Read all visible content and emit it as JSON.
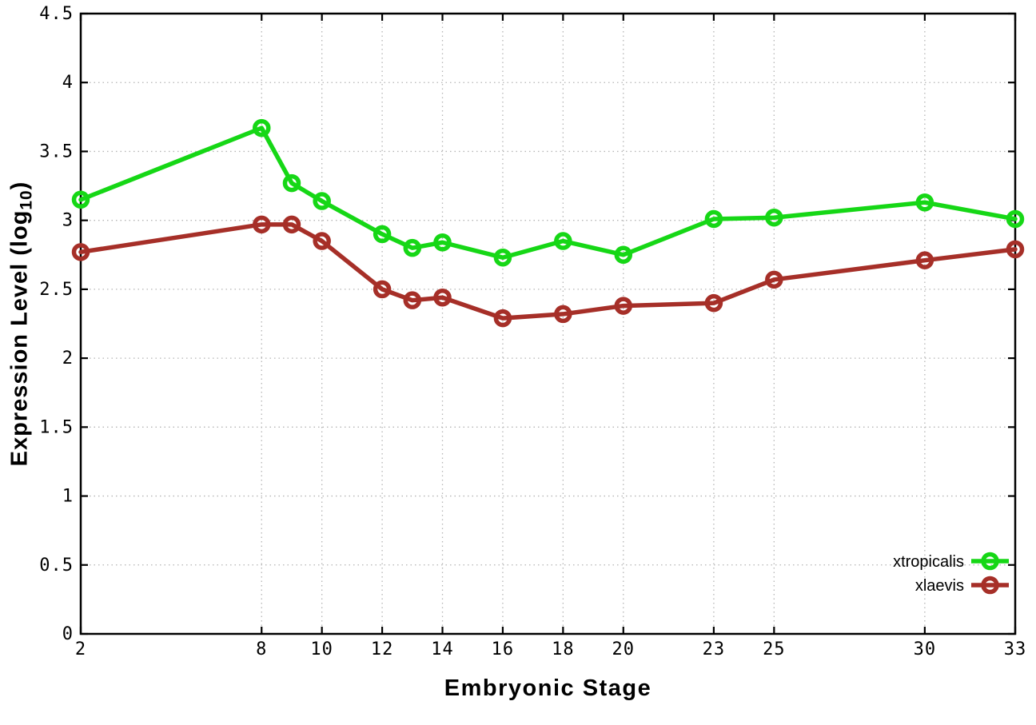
{
  "chart_data": {
    "type": "line",
    "title": "",
    "xlabel": "Embryonic Stage",
    "ylabel_prefix": "Expression Level (log",
    "ylabel_sub": "10",
    "ylabel_suffix": ")",
    "xlim": [
      2,
      33
    ],
    "ylim": [
      0,
      4.5
    ],
    "grid": true,
    "legend_position": "bottom-right-inside",
    "x": [
      2,
      8,
      9,
      10,
      12,
      13,
      14,
      16,
      18,
      20,
      23,
      25,
      30,
      33
    ],
    "x_ticks": [
      2,
      8,
      10,
      12,
      14,
      16,
      18,
      20,
      23,
      25,
      30,
      33
    ],
    "x_tick_labels": [
      "2",
      "8",
      "10",
      "12",
      "14",
      "16",
      "18",
      "20",
      "23",
      "25",
      "30",
      "33"
    ],
    "y_ticks": [
      0,
      0.5,
      1,
      1.5,
      2,
      2.5,
      3,
      3.5,
      4,
      4.5
    ],
    "y_tick_labels": [
      "0",
      "0.5",
      "1",
      "1.5",
      "2",
      "2.5",
      "3",
      "3.5",
      "4",
      "4.5"
    ],
    "series": [
      {
        "name": "xtropicalis",
        "color": "#16d716",
        "values": [
          3.15,
          3.67,
          3.27,
          3.14,
          2.9,
          2.8,
          2.84,
          2.73,
          2.85,
          2.75,
          3.01,
          3.02,
          3.13,
          3.01
        ]
      },
      {
        "name": "xlaevis",
        "color": "#a62f28",
        "values": [
          2.77,
          2.97,
          2.97,
          2.85,
          2.5,
          2.42,
          2.44,
          2.29,
          2.32,
          2.38,
          2.4,
          2.57,
          2.71,
          2.79
        ]
      }
    ]
  },
  "colors": {
    "background": "#ffffff",
    "axis": "#000000",
    "grid": "#b5b5b5",
    "series_green": "#16d716",
    "series_red": "#a62f28"
  }
}
